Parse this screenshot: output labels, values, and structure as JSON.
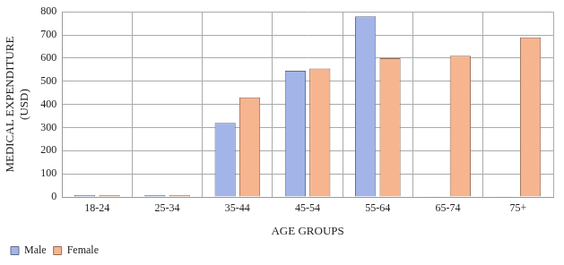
{
  "chart_data": {
    "type": "bar",
    "x_label": "AGE GROUPS",
    "y_label": "MEDICAL EXPENDITURE (USD)",
    "categories": [
      "18-24",
      "25-34",
      "35-44",
      "45-54",
      "55-64",
      "65-74",
      "75+"
    ],
    "series": [
      {
        "name": "Male",
        "color": "#a3b4e8",
        "values": [
          8,
          8,
          320,
          545,
          780,
          3,
          3
        ]
      },
      {
        "name": "Female",
        "color": "#f6b48f",
        "values": [
          8,
          8,
          430,
          555,
          600,
          610,
          690
        ]
      }
    ],
    "ylim": [
      0,
      800
    ],
    "yticks": [
      0,
      100,
      200,
      300,
      400,
      500,
      600,
      700,
      800
    ],
    "grid": true,
    "legend": "bottom"
  }
}
